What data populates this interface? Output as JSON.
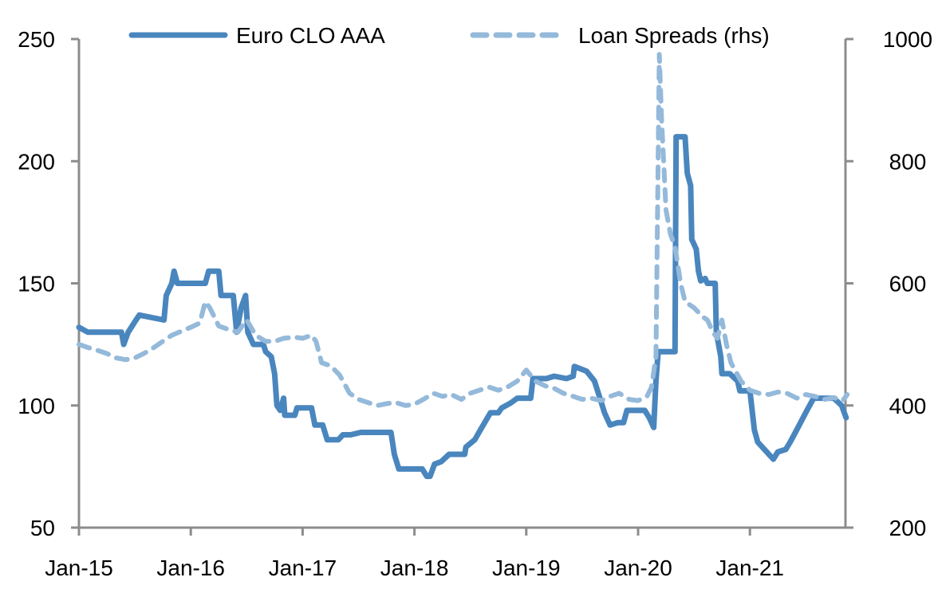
{
  "chart_data": {
    "type": "line",
    "title": "",
    "xlabel": "",
    "ylabel": "",
    "y2label": "",
    "x_ticks": [
      "Jan-15",
      "Jan-16",
      "Jan-17",
      "Jan-18",
      "Jan-19",
      "Jan-20",
      "Jan-21"
    ],
    "x_range_years": [
      2015.0,
      2021.87
    ],
    "ylim": [
      50,
      250
    ],
    "y_ticks": [
      50,
      100,
      150,
      200,
      250
    ],
    "y2lim": [
      200,
      1000
    ],
    "y2_ticks": [
      200,
      400,
      600,
      800,
      1000
    ],
    "grid": false,
    "legend_position": "top",
    "colors": {
      "euro_clo": "#4a86be",
      "loan_spreads": "#94b9da",
      "axis": "#8c8c8c"
    },
    "series": [
      {
        "name": "Euro CLO AAA",
        "axis": "left",
        "style": "solid",
        "x": [
          2015.0,
          2015.08,
          2015.38,
          2015.4,
          2015.44,
          2015.51,
          2015.54,
          2015.76,
          2015.78,
          2015.83,
          2015.85,
          2015.88,
          2016.13,
          2016.16,
          2016.25,
          2016.27,
          2016.38,
          2016.41,
          2016.45,
          2016.49,
          2016.51,
          2016.56,
          2016.65,
          2016.67,
          2016.72,
          2016.75,
          2016.77,
          2016.8,
          2016.83,
          2016.84,
          2016.93,
          2016.95,
          2017.08,
          2017.11,
          2017.18,
          2017.22,
          2017.32,
          2017.36,
          2017.43,
          2017.52,
          2017.79,
          2017.82,
          2017.86,
          2018.07,
          2018.11,
          2018.14,
          2018.18,
          2018.24,
          2018.31,
          2018.45,
          2018.46,
          2018.54,
          2018.59,
          2018.68,
          2018.75,
          2018.78,
          2018.86,
          2018.92,
          2019.04,
          2019.06,
          2019.18,
          2019.25,
          2019.36,
          2019.42,
          2019.43,
          2019.54,
          2019.61,
          2019.68,
          2019.7,
          2019.75,
          2019.82,
          2019.87,
          2019.9,
          2020.0,
          2020.06,
          2020.1,
          2020.14,
          2020.16,
          2020.18,
          2020.33,
          2020.34,
          2020.42,
          2020.44,
          2020.47,
          2020.48,
          2020.52,
          2020.54,
          2020.56,
          2020.6,
          2020.62,
          2020.69,
          2020.7,
          2020.74,
          2020.75,
          2020.82,
          2020.89,
          2020.91,
          2021.0,
          2021.04,
          2021.07,
          2021.13,
          2021.21,
          2021.25,
          2021.32,
          2021.36,
          2021.43,
          2021.51,
          2021.57,
          2021.75,
          2021.82,
          2021.86
        ],
        "values": [
          132,
          130,
          130,
          125,
          130,
          135,
          137,
          135,
          145,
          150,
          155,
          150,
          150,
          155,
          155,
          145,
          145,
          130,
          140,
          145,
          130,
          125,
          125,
          122,
          120,
          113,
          100,
          98,
          103,
          96,
          96,
          99,
          99,
          92,
          92,
          86,
          86,
          88,
          88,
          89,
          89,
          80,
          74,
          74,
          71,
          71,
          76,
          77,
          80,
          80,
          83,
          86,
          90,
          97,
          97,
          99,
          101,
          103,
          103,
          111,
          111,
          112,
          111,
          112,
          116,
          114,
          110,
          100,
          97,
          92,
          93,
          93,
          98,
          98,
          98,
          95,
          91,
          110,
          122,
          122,
          210,
          210,
          195,
          190,
          168,
          164,
          155,
          151,
          152,
          150,
          150,
          130,
          120,
          113,
          113,
          110,
          106,
          106,
          90,
          85,
          82,
          78,
          81,
          82,
          85,
          91,
          98,
          103,
          103,
          100,
          95
        ]
      },
      {
        "name": "Loan Spreads (rhs)",
        "axis": "right",
        "style": "dashed",
        "x": [
          2015.0,
          2015.08,
          2015.17,
          2015.25,
          2015.33,
          2015.42,
          2015.5,
          2015.58,
          2015.67,
          2015.75,
          2015.83,
          2015.92,
          2016.0,
          2016.08,
          2016.13,
          2016.17,
          2016.25,
          2016.33,
          2016.42,
          2016.5,
          2016.58,
          2016.67,
          2016.75,
          2016.83,
          2016.92,
          2017.0,
          2017.08,
          2017.12,
          2017.17,
          2017.25,
          2017.33,
          2017.42,
          2017.5,
          2017.58,
          2017.67,
          2017.75,
          2017.83,
          2017.92,
          2018.0,
          2018.08,
          2018.17,
          2018.25,
          2018.33,
          2018.42,
          2018.5,
          2018.58,
          2018.67,
          2018.75,
          2018.83,
          2018.92,
          2019.0,
          2019.08,
          2019.17,
          2019.25,
          2019.33,
          2019.42,
          2019.5,
          2019.58,
          2019.67,
          2019.75,
          2019.83,
          2019.92,
          2020.0,
          2020.08,
          2020.12,
          2020.16,
          2020.19,
          2020.21,
          2020.25,
          2020.29,
          2020.33,
          2020.38,
          2020.42,
          2020.5,
          2020.58,
          2020.62,
          2020.67,
          2020.71,
          2020.75,
          2020.79,
          2020.83,
          2020.92,
          2021.0,
          2021.08,
          2021.17,
          2021.25,
          2021.33,
          2021.42,
          2021.5,
          2021.58,
          2021.67,
          2021.75,
          2021.83,
          2021.87
        ],
        "values": [
          500,
          495,
          490,
          485,
          478,
          475,
          478,
          485,
          495,
          505,
          515,
          522,
          528,
          535,
          570,
          560,
          530,
          525,
          520,
          540,
          515,
          505,
          505,
          510,
          512,
          510,
          515,
          505,
          470,
          465,
          450,
          420,
          410,
          405,
          400,
          403,
          405,
          400,
          402,
          410,
          420,
          415,
          418,
          410,
          420,
          425,
          430,
          425,
          430,
          440,
          458,
          440,
          432,
          428,
          420,
          415,
          410,
          412,
          408,
          415,
          420,
          410,
          408,
          415,
          430,
          480,
          975,
          870,
          720,
          680,
          660,
          600,
          570,
          560,
          545,
          540,
          520,
          510,
          540,
          500,
          470,
          440,
          425,
          420,
          418,
          422,
          420,
          412,
          418,
          415,
          410,
          413,
          408,
          418
        ]
      }
    ]
  }
}
